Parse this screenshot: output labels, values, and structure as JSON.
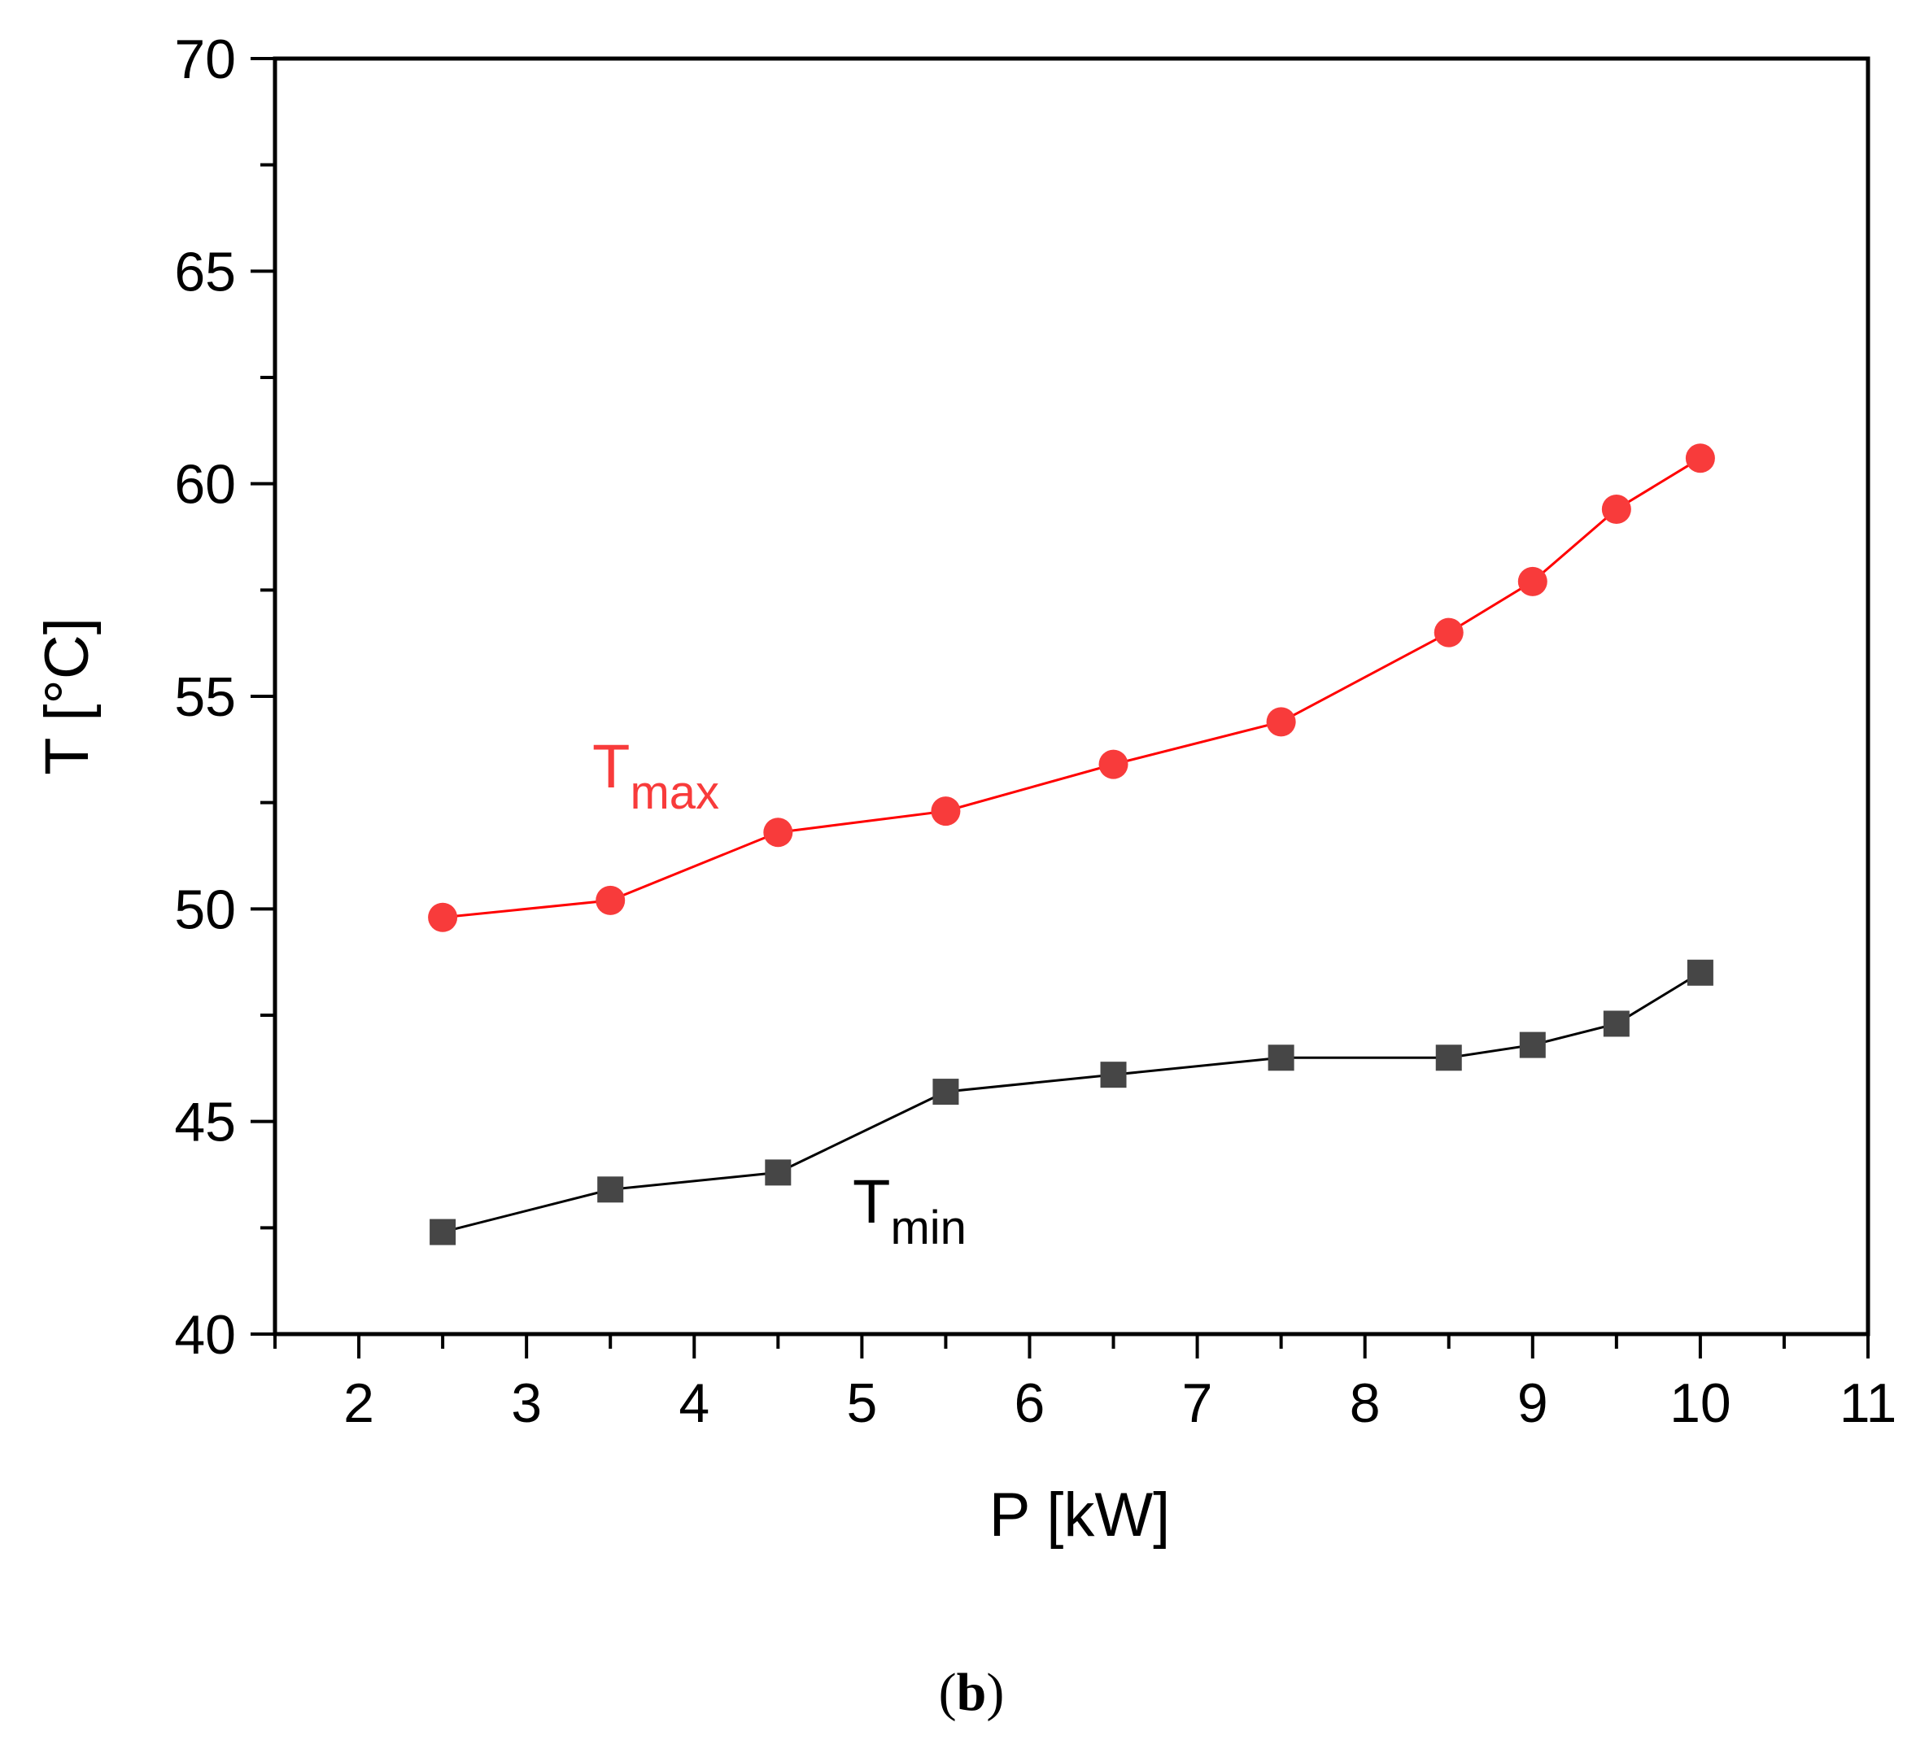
{
  "chart_data": {
    "type": "line",
    "xlabel": "P [kW]",
    "ylabel": "T [°C]",
    "xlim": [
      1.5,
      11
    ],
    "ylim": [
      40,
      70
    ],
    "x_ticks": [
      "2",
      "3",
      "4",
      "5",
      "6",
      "7",
      "8",
      "9",
      "10",
      "11"
    ],
    "y_ticks": [
      "40",
      "45",
      "50",
      "55",
      "60",
      "65",
      "70"
    ],
    "series": [
      {
        "name": "Tmax",
        "label_main": "T",
        "label_sub": "max",
        "color": "#f83b3b",
        "line_color": "#ff0000",
        "marker": "circle",
        "x": [
          2.5,
          3.5,
          4.5,
          5.5,
          6.5,
          7.5,
          8.5,
          9.0,
          9.5,
          10.0
        ],
        "values": [
          49.8,
          50.2,
          51.8,
          52.3,
          53.4,
          54.4,
          56.5,
          57.7,
          59.4,
          60.6
        ]
      },
      {
        "name": "Tmin",
        "label_main": "T",
        "label_sub": "min",
        "color": "#464646",
        "line_color": "#000000",
        "marker": "square",
        "x": [
          2.5,
          3.5,
          4.5,
          5.5,
          6.5,
          7.5,
          8.5,
          9.0,
          9.5,
          10.0
        ],
        "values": [
          42.4,
          43.4,
          43.8,
          45.7,
          46.1,
          46.5,
          46.5,
          46.8,
          47.3,
          48.5
        ]
      }
    ],
    "panel_label": {
      "open": "(",
      "letter": "b",
      "close": ")"
    }
  }
}
